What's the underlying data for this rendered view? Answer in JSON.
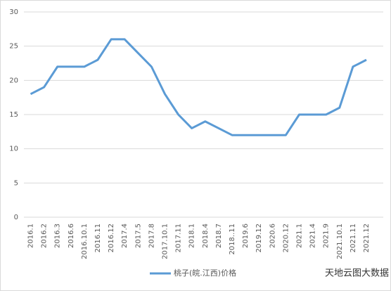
{
  "chart_data": {
    "type": "line",
    "categories": [
      "2016.1",
      "2016.2",
      "2016.3",
      "2016.6",
      "2016.10.1",
      "2016.11",
      "2016.12",
      "2017.4",
      "2017.5",
      "2017.8",
      "2017.10.1",
      "2017.11",
      "2018.1",
      "2018.4",
      "2018.7",
      "2018..11",
      "2019.6",
      "2019.12",
      "2020.6",
      "2020.12",
      "2021.1",
      "2021.4",
      "2021.9",
      "2021.10.1",
      "2021.11",
      "2021.12"
    ],
    "series": [
      {
        "name": "桃子(皖.江西)价格",
        "color": "#5b9bd5",
        "values": [
          18,
          19,
          22,
          22,
          22,
          23,
          26,
          26,
          24,
          22,
          18,
          15,
          13,
          14,
          13,
          12,
          12,
          12,
          12,
          12,
          15,
          15,
          15,
          16,
          22,
          23
        ]
      }
    ],
    "ylim": [
      0,
      30
    ],
    "yticks": [
      0,
      5,
      10,
      15,
      20,
      25,
      30
    ],
    "grid": true,
    "legend": "bottom",
    "watermark": "天地云图大数据"
  }
}
